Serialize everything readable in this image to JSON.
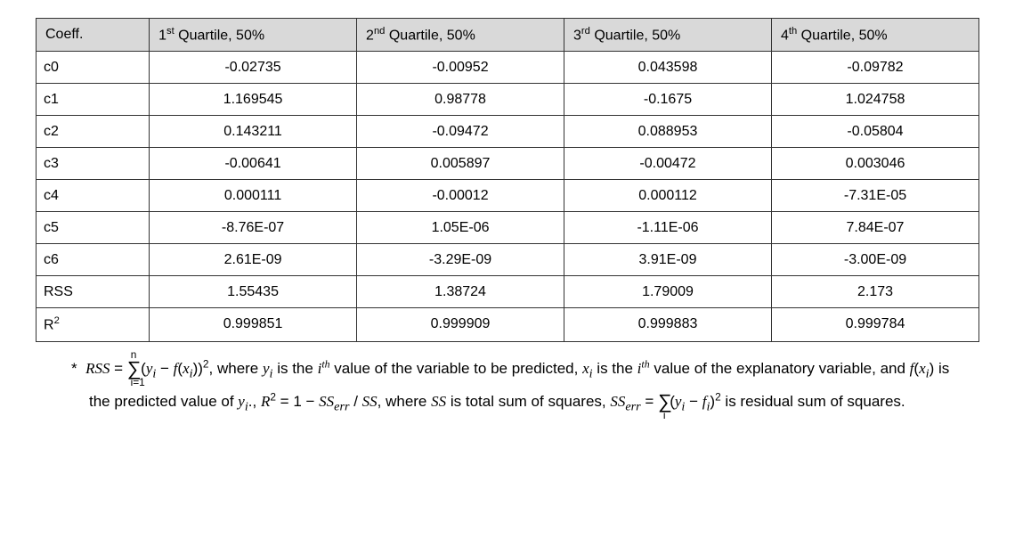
{
  "table": {
    "header_bg": "#d9d9d9",
    "border_color": "#333333",
    "columns": [
      {
        "key": "coeff",
        "label_html": "Coeff.",
        "width": "12%"
      },
      {
        "key": "q1",
        "label_html": "1<sup>st</sup> Quartile, 50%",
        "width": "22%"
      },
      {
        "key": "q2",
        "label_html": "2<sup>nd</sup> Quartile, 50%",
        "width": "22%"
      },
      {
        "key": "q3",
        "label_html": "3<sup>rd</sup> Quartile, 50%",
        "width": "22%"
      },
      {
        "key": "q4",
        "label_html": "4<sup>th</sup> Quartile, 50%",
        "width": "22%"
      }
    ],
    "rows": [
      {
        "label_html": "c0",
        "vals": [
          "-0.02735",
          "-0.00952",
          "0.043598",
          "-0.09782"
        ]
      },
      {
        "label_html": "c1",
        "vals": [
          "1.169545",
          "0.98778",
          "-0.1675",
          "1.024758"
        ]
      },
      {
        "label_html": "c2",
        "vals": [
          "0.143211",
          "-0.09472",
          "0.088953",
          "-0.05804"
        ]
      },
      {
        "label_html": "c3",
        "vals": [
          "-0.00641",
          "0.005897",
          "-0.00472",
          "0.003046"
        ]
      },
      {
        "label_html": "c4",
        "vals": [
          "0.000111",
          "-0.00012",
          "0.000112",
          "-7.31E-05"
        ]
      },
      {
        "label_html": "c5",
        "vals": [
          "-8.76E-07",
          "1.05E-06",
          "-1.11E-06",
          "7.84E-07"
        ]
      },
      {
        "label_html": "c6",
        "vals": [
          "2.61E-09",
          "-3.29E-09",
          "3.91E-09",
          "-3.00E-09"
        ]
      },
      {
        "label_html": "RSS",
        "vals": [
          "1.55435",
          "1.38724",
          "1.79009",
          "2.173"
        ]
      },
      {
        "label_html": "R<sup>2</sup>",
        "vals": [
          "0.999851",
          "0.999909",
          "0.999883",
          "0.999784"
        ]
      }
    ]
  },
  "footnote": {
    "html": "* &nbsp;<span class=\"mathit\">RSS</span> = <span class=\"sum\">&sum;</span><span class=\"sub\" style=\"margin-left:-12px;position:relative;top:10px;\">i=1</span><span class=\"sup\" style=\"margin-left:-16px;position:relative;top:-10px;\">n</span>&nbsp;(<span class=\"mathit\">y<sub>i</sub></span> &minus; <span class=\"mathit\">f</span>(<span class=\"mathit\">x<sub>i</sub></span>))<sup>2</sup>, where <span class=\"mathit\">y<sub>i</sub></span> is the <span class=\"mathit\">i<sup>th</sup></span> value of the variable to be predicted, <span class=\"mathit\">x<sub>i</sub></span> is the <span class=\"mathit\">i<sup>th</sup></span> value of the explanatory variable, and <span class=\"mathit\">f</span>(<span class=\"mathit\">x<sub>i</sub></span>) is the predicted value of <span class=\"mathit\">y<sub>i</sub></span>., <span class=\"mathit\">R</span><sup>2</sup> = 1 &minus; <span class=\"mathit\">SS<sub>err</sub></span> / <span class=\"mathit\">SS</span>, where <span class=\"mathit\">SS</span> is total sum of squares, <span class=\"mathit\">SS<sub>err</sub></span> = <span class=\"sum\">&sum;</span><span class=\"sub\" style=\"margin-left:-10px;position:relative;top:10px;\">i</span>&nbsp;(<span class=\"mathit\">y<sub>i</sub></span> &minus; <span class=\"mathit\">f<sub>i</sub></span>)<sup>2</sup> is residual sum of squares."
  }
}
